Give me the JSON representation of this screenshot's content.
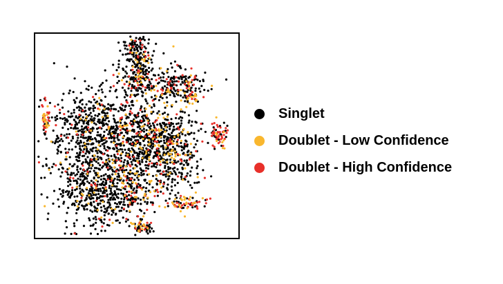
{
  "chart_data": {
    "type": "scatter",
    "title": "",
    "xlabel": "",
    "ylabel": "",
    "grid": false,
    "axes_ticks": false,
    "legend_placement": "right",
    "series": [
      {
        "name": "Singlet",
        "color": "#000000"
      },
      {
        "name": "Doublet - Low Confidence",
        "color": "#F9B72E"
      },
      {
        "name": "Doublet - High Confidence",
        "color": "#E8302A"
      }
    ],
    "point_shape": "circle",
    "x": [],
    "y": []
  }
}
